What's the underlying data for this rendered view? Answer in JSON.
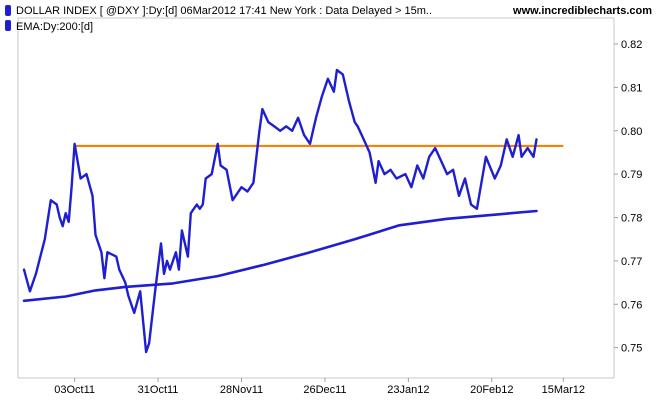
{
  "header": {
    "legend_items": [
      {
        "label": "DOLLAR INDEX [ @DXY ]:Dy:[d]  06Mar2012 17:41 New York : Data Delayed > 15m..",
        "color": "#1f1fd1"
      },
      {
        "label": "EMA:Dy:200:[d]",
        "color": "#1f1fd1"
      }
    ],
    "site_label": "www.incrediblecharts.com"
  },
  "colors": {
    "price_line": "#1f1fd1",
    "ema_line": "#1f1fd1",
    "resistance_line": "#ff8000",
    "plot_border": "#c8c8c8",
    "background": "#ffffff"
  },
  "chart_data": {
    "type": "line",
    "title": "DOLLAR INDEX [ @DXY ]:Dy:[d]  06Mar2012 17:41 New York : Data Delayed > 15m..",
    "xlabel": "",
    "ylabel": "",
    "x_axis": {
      "type": "date",
      "range": [
        "2011-09-14",
        "2012-04-01"
      ],
      "tick_labels": [
        "03Oct11",
        "31Oct11",
        "28Nov11",
        "26Dec11",
        "23Jan12",
        "20Feb12",
        "15Mar12"
      ],
      "tick_dates": [
        "2011-10-03",
        "2011-10-31",
        "2011-11-28",
        "2011-12-26",
        "2012-01-23",
        "2012-02-20",
        "2012-03-15"
      ]
    },
    "y_axis": {
      "range": [
        0.743,
        0.826
      ],
      "position": "right",
      "tick_labels": [
        "0.75",
        "0.76",
        "0.77",
        "0.78",
        "0.79",
        "0.80",
        "0.81",
        "0.82"
      ],
      "tick_values": [
        0.75,
        0.76,
        0.77,
        0.78,
        0.79,
        0.8,
        0.81,
        0.82
      ]
    },
    "grid": false,
    "legend": "top-left",
    "series": [
      {
        "name": "DOLLAR INDEX [ @DXY ]:Dy:[d]",
        "x": [
          "2011-09-16",
          "2011-09-18",
          "2011-09-20",
          "2011-09-23",
          "2011-09-25",
          "2011-09-27",
          "2011-09-28",
          "2011-09-29",
          "2011-09-30",
          "2011-10-01",
          "2011-10-02",
          "2011-10-03",
          "2011-10-05",
          "2011-10-07",
          "2011-10-09",
          "2011-10-10",
          "2011-10-12",
          "2011-10-13",
          "2011-10-14",
          "2011-10-17",
          "2011-10-18",
          "2011-10-20",
          "2011-10-21",
          "2011-10-23",
          "2011-10-25",
          "2011-10-27",
          "2011-10-28",
          "2011-10-30",
          "2011-11-01",
          "2011-11-02",
          "2011-11-03",
          "2011-11-04",
          "2011-11-06",
          "2011-11-07",
          "2011-11-08",
          "2011-11-10",
          "2011-11-11",
          "2011-11-13",
          "2011-11-14",
          "2011-11-15",
          "2011-11-16",
          "2011-11-18",
          "2011-11-20",
          "2011-11-21",
          "2011-11-23",
          "2011-11-25",
          "2011-11-28",
          "2011-11-30",
          "2011-12-02",
          "2011-12-04",
          "2011-12-05",
          "2011-12-07",
          "2011-12-09",
          "2011-12-11",
          "2011-12-13",
          "2011-12-15",
          "2011-12-17",
          "2011-12-19",
          "2011-12-21",
          "2011-12-23",
          "2011-12-25",
          "2011-12-27",
          "2011-12-29",
          "2011-12-30",
          "2012-01-01",
          "2012-01-03",
          "2012-01-05",
          "2012-01-06",
          "2012-01-08",
          "2012-01-10",
          "2012-01-12",
          "2012-01-13",
          "2012-01-15",
          "2012-01-17",
          "2012-01-19",
          "2012-01-22",
          "2012-01-24",
          "2012-01-26",
          "2012-01-28",
          "2012-01-30",
          "2012-02-01",
          "2012-02-03",
          "2012-02-05",
          "2012-02-07",
          "2012-02-09",
          "2012-02-11",
          "2012-02-13",
          "2012-02-15",
          "2012-02-18",
          "2012-02-21",
          "2012-02-23",
          "2012-02-25",
          "2012-02-27",
          "2012-02-29",
          "2012-03-01",
          "2012-03-03",
          "2012-03-05",
          "2012-03-06"
        ],
        "y": [
          0.768,
          0.763,
          0.767,
          0.775,
          0.784,
          0.783,
          0.78,
          0.778,
          0.781,
          0.779,
          0.787,
          0.797,
          0.789,
          0.79,
          0.785,
          0.776,
          0.772,
          0.766,
          0.772,
          0.771,
          0.768,
          0.765,
          0.762,
          0.758,
          0.763,
          0.749,
          0.751,
          0.763,
          0.774,
          0.767,
          0.77,
          0.768,
          0.772,
          0.768,
          0.777,
          0.771,
          0.781,
          0.783,
          0.782,
          0.783,
          0.789,
          0.79,
          0.797,
          0.792,
          0.791,
          0.784,
          0.787,
          0.786,
          0.788,
          0.8,
          0.805,
          0.802,
          0.801,
          0.8,
          0.801,
          0.8,
          0.803,
          0.799,
          0.797,
          0.803,
          0.808,
          0.812,
          0.809,
          0.814,
          0.813,
          0.807,
          0.802,
          0.801,
          0.798,
          0.795,
          0.788,
          0.793,
          0.79,
          0.791,
          0.789,
          0.79,
          0.787,
          0.792,
          0.789,
          0.794,
          0.796,
          0.793,
          0.79,
          0.791,
          0.785,
          0.789,
          0.783,
          0.782,
          0.794,
          0.789,
          0.792,
          0.798,
          0.794,
          0.799,
          0.794,
          0.796,
          0.794,
          0.798
        ]
      },
      {
        "name": "EMA:Dy:200:[d]",
        "x": [
          "2011-09-16",
          "2011-09-30",
          "2011-10-10",
          "2011-10-20",
          "2011-11-05",
          "2011-11-20",
          "2011-12-05",
          "2011-12-20",
          "2012-01-05",
          "2012-01-20",
          "2012-02-05",
          "2012-02-20",
          "2012-03-06"
        ],
        "y": [
          0.7608,
          0.7618,
          0.7632,
          0.764,
          0.7648,
          0.7665,
          0.769,
          0.7718,
          0.775,
          0.7782,
          0.7797,
          0.7806,
          0.7815
        ]
      }
    ],
    "annotations": [
      {
        "type": "horizontal_line",
        "y": 0.7965,
        "x_start": "2011-10-03",
        "x_end": "2012-03-15",
        "color": "#ff8000"
      }
    ]
  }
}
